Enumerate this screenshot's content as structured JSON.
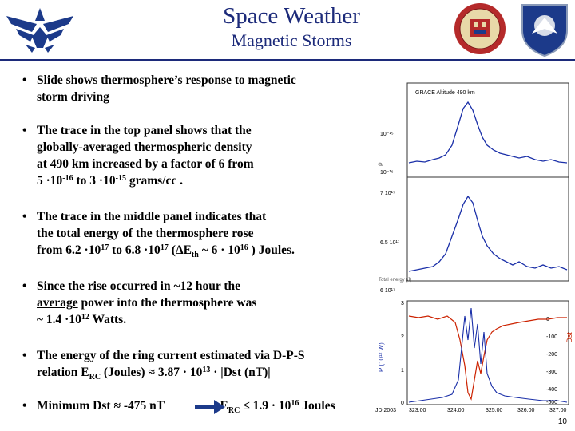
{
  "header": {
    "title": "Space Weather",
    "subtitle": "Magnetic Storms"
  },
  "bullets": [
    {
      "line1": "Slide shows thermosphere’s response to magnetic",
      "line2": "storm driving"
    },
    {
      "line1": "The trace in the top panel shows that the",
      "line2": "globally-averaged thermospheric density",
      "line3": "at 490 km increased by a factor of 6 from",
      "l4a": "5 ·10",
      "l4b": "-16",
      "l4c": " to 3 ·10",
      "l4d": "-15",
      "l4e": " grams/cc ."
    },
    {
      "line1": "The trace in the middle panel indicates that",
      "line2": "the total energy of the thermosphere rose",
      "l3a": "from 6.2 ·10",
      "l3b": "17",
      "l3c": " to 6.8 ·10",
      "l3d": "17",
      "l3e": " (ΔE",
      "l3f": "th",
      "l3g": " ~ ",
      "l3h": "6 · 10",
      "l3i": "16",
      "l3j": " ) Joules."
    },
    {
      "line1": "Since the rise occurred in ~12 hour the",
      "line2u": "average",
      "line2r": " power into the thermosphere was",
      "l3a": "~ 1.4 ·10",
      "l3b": "12",
      "l3c": "  Watts."
    },
    {
      "line1": "The energy of the ring current estimated via D-P-S",
      "l2a": "relation E",
      "l2b": "RC",
      "l2c": " (Joules)  ≈  3.87  · 10",
      "l2d": "13",
      "l2e": "  ·  |Dst (nT)|"
    },
    {
      "l1a": "Minimum Dst ≈ -475 nT",
      "l1b": "E",
      "l1c": "RC",
      "l1d": " ≤  1.9 · 10",
      "l1e": "16",
      "l1f": " Joules"
    }
  ],
  "plots": {
    "top_label": "GRACE Altitude 490 km",
    "top_ticks": [
      "10⁻¹⁵",
      "10⁻¹⁶"
    ],
    "mid_ticks": [
      "7 10¹⁷",
      "6.5 10¹⁷",
      "6 10¹⁷"
    ],
    "bot_left_ticks": [
      "3",
      "2",
      "1",
      "0"
    ],
    "bot_right_ticks": [
      "0",
      "-100",
      "-200",
      "-300",
      "-400",
      "-500"
    ],
    "x_ticks": [
      "JD 2003",
      "323:00",
      "324:00",
      "325:00",
      "326:00",
      "327:00"
    ],
    "colors": {
      "series_blue": "#1a2fa8",
      "series_red": "#cc2200",
      "dst_axis": "#cc2200"
    }
  },
  "page_number": "10"
}
